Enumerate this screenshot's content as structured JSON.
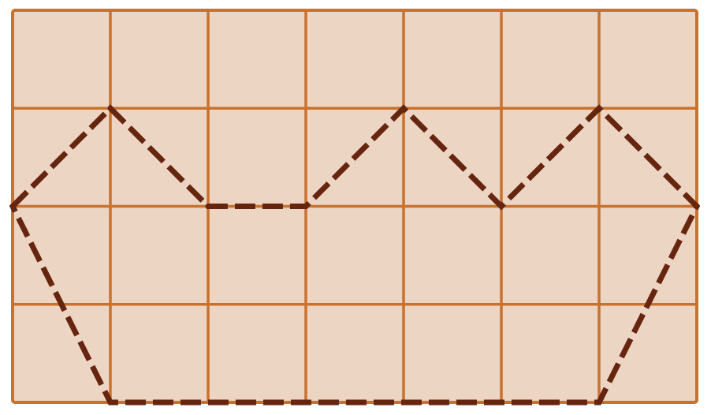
{
  "grid": {
    "columns": 7,
    "rows": 4,
    "cell_fill": "#EDD5C4",
    "line_color": "#C8722E"
  },
  "polygon": {
    "stroke_color": "#66250F",
    "style": "dashed",
    "vertices": [
      [
        0,
        2
      ],
      [
        1,
        3
      ],
      [
        2,
        2
      ],
      [
        3,
        2
      ],
      [
        4,
        3
      ],
      [
        5,
        2
      ],
      [
        6,
        3
      ],
      [
        7,
        2
      ],
      [
        6,
        0
      ],
      [
        1,
        0
      ]
    ]
  }
}
